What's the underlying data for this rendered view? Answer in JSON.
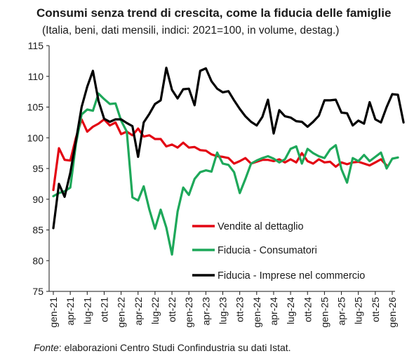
{
  "title": "Consumi senza trend di crescita, come la fiducia delle famiglie",
  "subtitle": "(Italia, beni, dati mensili, indici: 2021=100, in volume, destag.)",
  "source_label": "Fonte",
  "source_text": ": elaborazioni Centro Studi Confindustria su dati Istat.",
  "chart_data": {
    "type": "line",
    "ylim": [
      75,
      115
    ],
    "yticks": [
      75,
      80,
      85,
      90,
      95,
      100,
      105,
      110,
      115
    ],
    "x_start": "gen-21",
    "xtick_labels": [
      "gen-21",
      "apr-21",
      "lug-21",
      "ott-21",
      "gen-22",
      "apr-22",
      "lug-22",
      "ott-22",
      "gen-23",
      "apr-23",
      "lug-23",
      "ott-23",
      "gen-24",
      "apr-24",
      "lug-24",
      "ott-24",
      "gen-25",
      "apr-25",
      "lug-25",
      "ott-25",
      "gen-26"
    ],
    "legend_position": "bottom-right inside plot",
    "series": [
      {
        "name": "Vendite al dettaglio",
        "color": "#e30613",
        "values": [
          91.5,
          98.3,
          96.4,
          96.3,
          100.0,
          103.0,
          101.0,
          101.8,
          102.3,
          103.0,
          102.0,
          102.5,
          100.6,
          101.0,
          100.4,
          101.5,
          100.2,
          100.4,
          99.8,
          99.8,
          98.6,
          98.9,
          98.4,
          99.2,
          98.4,
          98.5,
          98.0,
          97.9,
          97.3,
          97.0,
          96.9,
          96.7,
          95.8,
          96.2,
          96.7,
          95.8,
          96.1,
          96.4,
          96.4,
          96.2,
          96.5,
          96.0,
          96.5,
          96.0,
          97.5,
          96.2,
          95.8,
          96.5,
          96.0,
          96.1,
          95.3,
          96.0,
          95.7,
          96.0,
          96.1,
          95.8,
          95.5,
          96.0,
          96.5,
          95.5
        ]
      },
      {
        "name": "Fiducia - Consumatori",
        "color": "#1ea85a",
        "values": [
          90.5,
          91.0,
          91.3,
          91.9,
          99.0,
          103.8,
          104.6,
          104.4,
          107.2,
          106.3,
          105.5,
          105.6,
          102.8,
          101.0,
          90.3,
          89.8,
          92.1,
          88.3,
          85.2,
          88.3,
          85.4,
          81.0,
          88.0,
          91.9,
          90.7,
          93.3,
          94.4,
          94.7,
          94.5,
          97.6,
          95.8,
          95.6,
          94.4,
          91.0,
          93.3,
          95.8,
          96.3,
          96.7,
          97.0,
          96.6,
          96.0,
          96.5,
          98.2,
          98.6,
          95.8,
          98.2,
          97.5,
          97.0,
          96.7,
          98.1,
          98.8,
          94.9,
          92.7,
          96.7,
          96.2,
          97.2,
          96.2,
          96.9,
          97.6,
          95.0,
          96.6,
          96.8
        ]
      },
      {
        "name": "Fiducia - Imprese nel commercio",
        "color": "#000000",
        "values": [
          85.3,
          92.5,
          90.4,
          94.3,
          99.5,
          105.0,
          108.3,
          110.9,
          106.0,
          103.1,
          102.6,
          103.0,
          103.0,
          102.4,
          101.9,
          96.9,
          102.5,
          103.9,
          105.5,
          106.1,
          111.4,
          107.8,
          106.4,
          107.9,
          108.0,
          105.3,
          110.9,
          111.3,
          109.2,
          108.0,
          107.4,
          107.6,
          106.1,
          104.7,
          103.5,
          102.6,
          102.0,
          103.4,
          106.2,
          100.7,
          104.5,
          103.5,
          103.3,
          102.7,
          102.6,
          101.8,
          102.6,
          103.6,
          106.1,
          106.1,
          106.2,
          104.1,
          104.0,
          102.0,
          102.8,
          102.3,
          105.8,
          103.0,
          102.5,
          105.0,
          107.1,
          107.0,
          102.5
        ]
      }
    ]
  }
}
